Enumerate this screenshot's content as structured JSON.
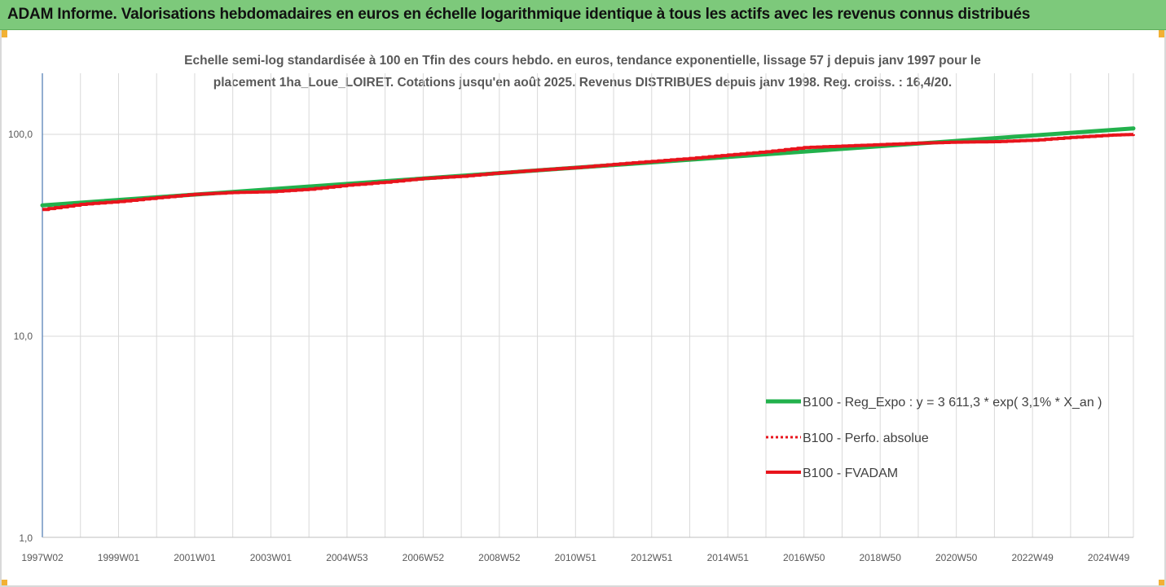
{
  "banner": {
    "title": "ADAM Informe. Valorisations hebdomadaires en euros en échelle logarithmique identique à tous les actifs avec les revenus connus distribués"
  },
  "colors": {
    "banner_bg": "#7dc97b",
    "corner_accent": "#f2b134",
    "series_trend": "#22b14c",
    "series_perfo": "#e8141c",
    "series_fvadam": "#e8141c",
    "gridline": "#d9d9d9",
    "axis": "#4a78b0"
  },
  "chart_data": {
    "type": "line",
    "title_line1": "Echelle semi-log standardisée à 100 en Tfin des cours hebdo. en euros, tendance exponentielle, lissage 57 j depuis janv 1997 pour le",
    "title_line2": "placement 1ha_Loue_LOIRET. Cotations jusqu'en août 2025. Revenus DISTRIBUES depuis janv 1998. Reg. croiss. : 16,4/20.",
    "y_scale": "log",
    "ylim": [
      1,
      200
    ],
    "y_ticks": [
      {
        "value": 1,
        "label": "1,0"
      },
      {
        "value": 10,
        "label": "10,0"
      },
      {
        "value": 100,
        "label": "100,0"
      }
    ],
    "x_range": [
      1997.0,
      2025.65
    ],
    "x_ticks": [
      {
        "value": 1997.0,
        "label": "1997W02"
      },
      {
        "value": 1999.0,
        "label": "1999W01"
      },
      {
        "value": 2001.0,
        "label": "2001W01"
      },
      {
        "value": 2003.0,
        "label": "2003W01"
      },
      {
        "value": 2005.0,
        "label": "2004W53"
      },
      {
        "value": 2007.0,
        "label": "2006W52"
      },
      {
        "value": 2009.0,
        "label": "2008W52"
      },
      {
        "value": 2011.0,
        "label": "2010W51"
      },
      {
        "value": 2013.0,
        "label": "2012W51"
      },
      {
        "value": 2015.0,
        "label": "2014W51"
      },
      {
        "value": 2017.0,
        "label": "2016W50"
      },
      {
        "value": 2019.0,
        "label": "2018W50"
      },
      {
        "value": 2021.0,
        "label": "2020W50"
      },
      {
        "value": 2023.0,
        "label": "2022W49"
      },
      {
        "value": 2025.0,
        "label": "2024W49"
      }
    ],
    "grid": "vertical",
    "legend_position": "bottom-right",
    "series": [
      {
        "name": "B100 - Reg_Expo : y = 3 611,3 * exp( 3,1% *  X_an )",
        "style": "solid",
        "x": [
          1997.0,
          2025.65
        ],
        "y": [
          44.5,
          107.0
        ]
      },
      {
        "name": "B100 - Perfo. absolue",
        "style": "dotted",
        "x": [
          1997.0,
          1998.0,
          1999.0,
          2000.0,
          2001.0,
          2002.0,
          2003.0,
          2004.0,
          2005.0,
          2006.0,
          2007.0,
          2008.0,
          2009.0,
          2010.0,
          2011.0,
          2012.0,
          2013.0,
          2014.0,
          2015.0,
          2016.0,
          2017.0,
          2018.0,
          2019.0,
          2020.0,
          2021.0,
          2022.0,
          2023.0,
          2024.0,
          2025.0,
          2025.65
        ],
        "y": [
          42.5,
          45.0,
          46.5,
          48.5,
          50.5,
          51.5,
          52.0,
          53.5,
          56.0,
          58.0,
          60.5,
          62.0,
          64.5,
          66.5,
          68.5,
          71.0,
          73.5,
          76.0,
          79.0,
          82.0,
          86.0,
          87.5,
          89.0,
          90.5,
          91.5,
          92.0,
          93.5,
          96.5,
          99.0,
          100.0
        ]
      },
      {
        "name": "B100 - FVADAM",
        "style": "solid-thick",
        "x": [
          1997.0,
          1998.0,
          1999.0,
          2000.0,
          2001.0,
          2002.0,
          2003.0,
          2004.0,
          2005.0,
          2006.0,
          2007.0,
          2008.0,
          2009.0,
          2010.0,
          2011.0,
          2012.0,
          2013.0,
          2014.0,
          2015.0,
          2016.0,
          2017.0,
          2018.0,
          2019.0,
          2020.0,
          2021.0,
          2022.0,
          2023.0,
          2024.0,
          2025.0,
          2025.65
        ],
        "y": [
          42.5,
          45.0,
          46.5,
          48.5,
          50.5,
          51.5,
          52.0,
          53.5,
          56.0,
          58.0,
          60.5,
          62.0,
          64.5,
          66.5,
          68.5,
          71.0,
          73.5,
          76.0,
          79.0,
          82.0,
          86.0,
          87.5,
          89.0,
          90.5,
          91.5,
          92.0,
          93.5,
          96.5,
          99.0,
          100.0
        ]
      }
    ]
  }
}
